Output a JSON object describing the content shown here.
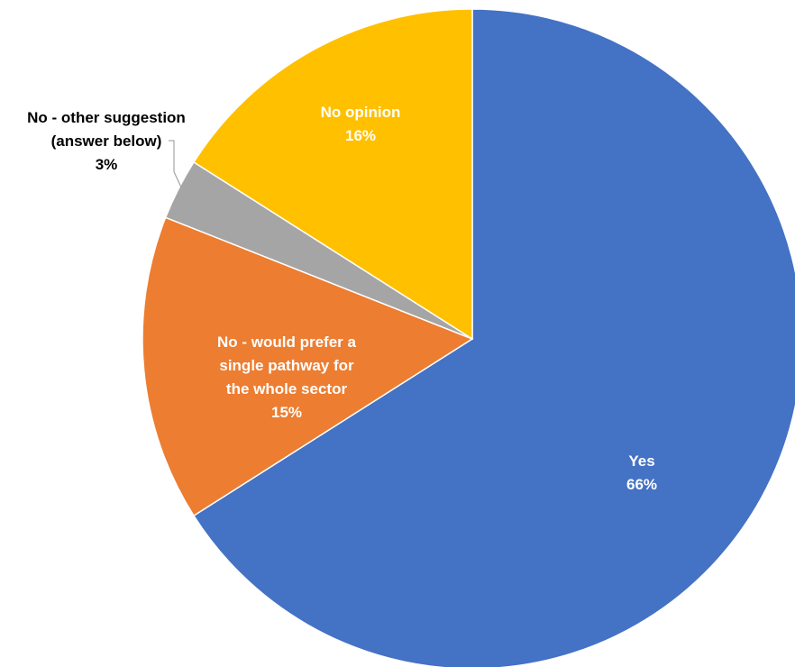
{
  "chart_data": {
    "type": "pie",
    "title": "",
    "start_angle_deg": 0,
    "direction": "clockwise",
    "slices": [
      {
        "label": "Yes",
        "value": 66,
        "value_label": "66%",
        "color": "#4472c4",
        "label_color": "#ffffff",
        "label_lines": [
          "Yes"
        ]
      },
      {
        "label": "No - would prefer a single pathway for the whole sector",
        "value": 15,
        "value_label": "15%",
        "color": "#ed7d31",
        "label_color": "#ffffff",
        "label_lines": [
          "No - would prefer a",
          "single pathway for",
          "the whole sector"
        ]
      },
      {
        "label": "No - other suggestion (answer below)",
        "value": 3,
        "value_label": "3%",
        "color": "#a5a5a5",
        "label_color": "#000000",
        "label_lines": [
          "No - other suggestion",
          "(answer below)"
        ]
      },
      {
        "label": "No opinion",
        "value": 16,
        "value_label": "16%",
        "color": "#ffc000",
        "label_color": "#ffffff",
        "label_lines": [
          "No opinion"
        ]
      }
    ],
    "legend": "none"
  }
}
